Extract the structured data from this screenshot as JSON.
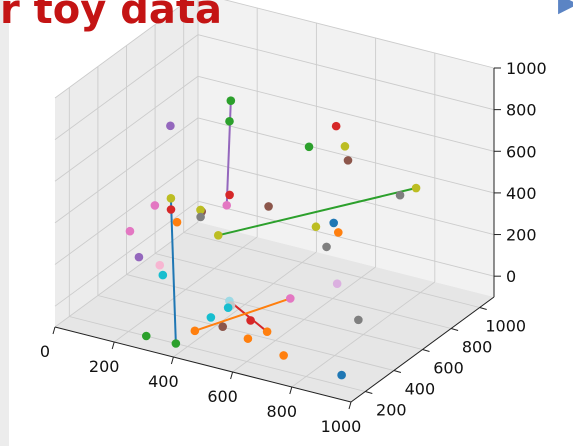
{
  "title": "r toy data",
  "corner_glyph": "▶",
  "chart_data": {
    "type": "scatter3d",
    "title": "r toy data",
    "xlabel": "",
    "ylabel": "",
    "zlabel": "",
    "xlim": [
      0,
      1000
    ],
    "ylim": [
      100,
      1100
    ],
    "zlim": [
      -100,
      1000
    ],
    "x_ticks": [
      0,
      200,
      400,
      600,
      800,
      1000
    ],
    "y_ticks": [
      200,
      400,
      600,
      800,
      1000
    ],
    "z_ticks": [
      0,
      200,
      400,
      600,
      800,
      1000
    ],
    "grid": true,
    "points": [
      {
        "x": 100,
        "y": 700,
        "z": 600,
        "color": "#9467bd"
      },
      {
        "x": 280,
        "y": 750,
        "z": 760,
        "color": "#2ca02c"
      },
      {
        "x": 290,
        "y": 720,
        "z": 680,
        "color": "#2ca02c"
      },
      {
        "x": 300,
        "y": 700,
        "z": 340,
        "color": "#d62728"
      },
      {
        "x": 300,
        "y": 680,
        "z": 300,
        "color": "#e377c2"
      },
      {
        "x": 230,
        "y": 650,
        "z": 260,
        "color": "#8c564b"
      },
      {
        "x": 120,
        "y": 550,
        "z": 300,
        "color": "#e377c2"
      },
      {
        "x": 150,
        "y": 600,
        "z": 320,
        "color": "#bcbd22"
      },
      {
        "x": 160,
        "y": 580,
        "z": 280,
        "color": "#d62728"
      },
      {
        "x": 190,
        "y": 560,
        "z": 240,
        "color": "#ff7f0e"
      },
      {
        "x": 250,
        "y": 600,
        "z": 300,
        "color": "#bcbd22"
      },
      {
        "x": 260,
        "y": 580,
        "z": 280,
        "color": "#7f7f7f"
      },
      {
        "x": 60,
        "y": 500,
        "z": 180,
        "color": "#e377c2"
      },
      {
        "x": 100,
        "y": 480,
        "z": 80,
        "color": "#9467bd"
      },
      {
        "x": 180,
        "y": 460,
        "z": 80,
        "color": "#f7b6d2"
      },
      {
        "x": 200,
        "y": 440,
        "z": 50,
        "color": "#17becf"
      },
      {
        "x": 310,
        "y": 600,
        "z": 200,
        "color": "#bcbd22"
      },
      {
        "x": 520,
        "y": 800,
        "z": 600,
        "color": "#2ca02c"
      },
      {
        "x": 660,
        "y": 700,
        "z": 800,
        "color": "#d62728"
      },
      {
        "x": 680,
        "y": 720,
        "z": 700,
        "color": "#bcbd22"
      },
      {
        "x": 700,
        "y": 700,
        "z": 650,
        "color": "#8c564b"
      },
      {
        "x": 480,
        "y": 600,
        "z": 400,
        "color": "#8c564b"
      },
      {
        "x": 640,
        "y": 600,
        "z": 360,
        "color": "#bcbd22"
      },
      {
        "x": 700,
        "y": 600,
        "z": 400,
        "color": "#1f77b4"
      },
      {
        "x": 700,
        "y": 550,
        "z": 310,
        "color": "#7f7f7f"
      },
      {
        "x": 730,
        "y": 570,
        "z": 380,
        "color": "#ff7f0e"
      },
      {
        "x": 760,
        "y": 500,
        "z": 180,
        "color": "#dbb0e0"
      },
      {
        "x": 900,
        "y": 650,
        "z": 580,
        "color": "#7f7f7f"
      },
      {
        "x": 930,
        "y": 700,
        "z": 600,
        "color": "#bcbd22"
      },
      {
        "x": 880,
        "y": 400,
        "z": 100,
        "color": "#7f7f7f"
      },
      {
        "x": 920,
        "y": 200,
        "z": -50,
        "color": "#1f77b4"
      },
      {
        "x": 420,
        "y": 450,
        "z": 0,
        "color": "#9edae5"
      },
      {
        "x": 440,
        "y": 420,
        "z": 0,
        "color": "#c7c7c7"
      },
      {
        "x": 440,
        "y": 400,
        "z": 0,
        "color": "#17becf"
      },
      {
        "x": 540,
        "y": 350,
        "z": 0,
        "color": "#d62728"
      },
      {
        "x": 620,
        "y": 300,
        "z": 0,
        "color": "#ff7f0e"
      },
      {
        "x": 650,
        "y": 400,
        "z": 120,
        "color": "#e377c2"
      },
      {
        "x": 560,
        "y": 290,
        "z": -50,
        "color": "#ff7f0e"
      },
      {
        "x": 430,
        "y": 300,
        "z": 0,
        "color": "#17becf"
      },
      {
        "x": 470,
        "y": 300,
        "z": -30,
        "color": "#8c564b"
      },
      {
        "x": 400,
        "y": 250,
        "z": -50,
        "color": "#ff7f0e"
      },
      {
        "x": 360,
        "y": 200,
        "z": -100,
        "color": "#2ca02c"
      },
      {
        "x": 260,
        "y": 200,
        "z": -100,
        "color": "#2ca02c"
      },
      {
        "x": 700,
        "y": 250,
        "z": -60,
        "color": "#ff7f0e"
      }
    ],
    "segments": [
      {
        "from": [
          150,
          600,
          320
        ],
        "to": [
          360,
          200,
          -100
        ],
        "color": "#1f77b4"
      },
      {
        "from": [
          310,
          600,
          200
        ],
        "to": [
          930,
          700,
          600
        ],
        "color": "#2ca02c"
      },
      {
        "from": [
          280,
          750,
          760
        ],
        "to": [
          300,
          680,
          300
        ],
        "color": "#9467bd"
      },
      {
        "from": [
          420,
          450,
          0
        ],
        "to": [
          620,
          300,
          0
        ],
        "color": "#d62728"
      },
      {
        "from": [
          400,
          250,
          -50
        ],
        "to": [
          650,
          400,
          120
        ],
        "color": "#ff7f0e"
      }
    ]
  }
}
